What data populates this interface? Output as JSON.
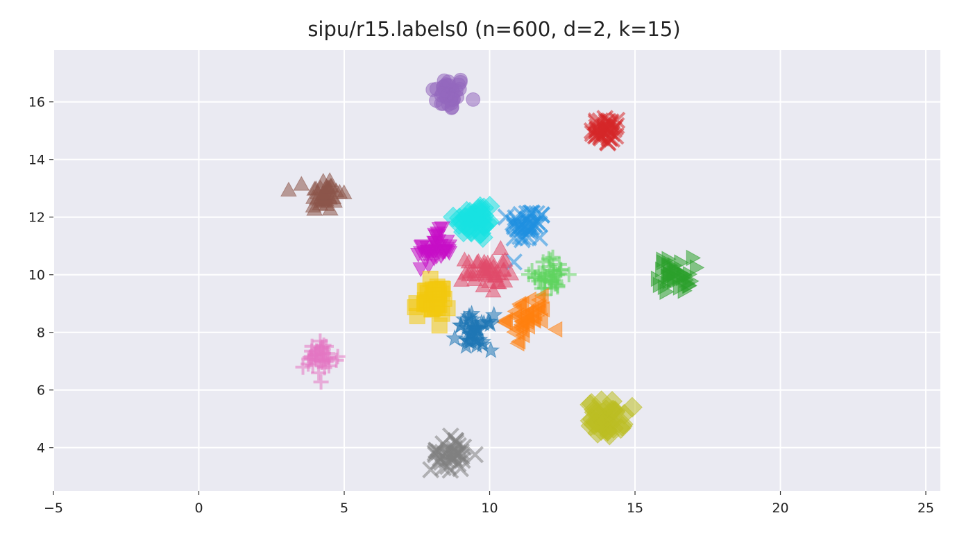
{
  "chart_data": {
    "type": "scatter",
    "title": "sipu/r15.labels0 (n=600, d=2, k=15)",
    "xlabel": "",
    "ylabel": "",
    "xlim": [
      -5,
      25.5
    ],
    "ylim": [
      2.5,
      17.8
    ],
    "xticks": [
      -5,
      0,
      5,
      10,
      15,
      20,
      25
    ],
    "yticks": [
      4,
      6,
      8,
      10,
      12,
      14,
      16
    ],
    "grid": true,
    "background": "#eaeaf2",
    "clusters": [
      {
        "center": [
          8.6,
          16.3
        ],
        "spread": 0.3,
        "count": 40,
        "marker": "circle",
        "color": "#9467bd"
      },
      {
        "center": [
          14.0,
          15.0
        ],
        "spread": 0.25,
        "count": 40,
        "marker": "x",
        "color": "#d62728"
      },
      {
        "center": [
          4.3,
          12.8
        ],
        "spread": 0.3,
        "count": 40,
        "marker": "triangle-up",
        "color": "#8c564b"
      },
      {
        "center": [
          9.5,
          11.9
        ],
        "spread": 0.35,
        "count": 40,
        "marker": "diamond",
        "color": "#17e2e2"
      },
      {
        "center": [
          11.3,
          11.7
        ],
        "spread": 0.3,
        "count": 40,
        "marker": "x",
        "color": "#1f8fe0"
      },
      {
        "center": [
          8.1,
          10.9
        ],
        "spread": 0.3,
        "count": 40,
        "marker": "triangle-down",
        "color": "#c70fc7"
      },
      {
        "center": [
          9.9,
          10.1
        ],
        "spread": 0.35,
        "count": 40,
        "marker": "triangle-up",
        "color": "#e04a6a"
      },
      {
        "center": [
          12.1,
          10.0
        ],
        "spread": 0.3,
        "count": 40,
        "marker": "plus",
        "color": "#5fd35f"
      },
      {
        "center": [
          16.4,
          10.0
        ],
        "spread": 0.3,
        "count": 40,
        "marker": "triangle-right",
        "color": "#2ca02c"
      },
      {
        "center": [
          8.0,
          9.1
        ],
        "spread": 0.3,
        "count": 40,
        "marker": "square",
        "color": "#f2c80f"
      },
      {
        "center": [
          11.3,
          8.5
        ],
        "spread": 0.35,
        "count": 40,
        "marker": "triangle-left",
        "color": "#ff7f0e"
      },
      {
        "center": [
          9.5,
          8.0
        ],
        "spread": 0.3,
        "count": 40,
        "marker": "star",
        "color": "#1f77b4"
      },
      {
        "center": [
          4.2,
          7.1
        ],
        "spread": 0.3,
        "count": 40,
        "marker": "plus",
        "color": "#e377c2"
      },
      {
        "center": [
          14.0,
          5.0
        ],
        "spread": 0.3,
        "count": 40,
        "marker": "diamond",
        "color": "#bcbd22"
      },
      {
        "center": [
          8.6,
          3.8
        ],
        "spread": 0.3,
        "count": 40,
        "marker": "x",
        "color": "#7f7f7f"
      }
    ]
  }
}
